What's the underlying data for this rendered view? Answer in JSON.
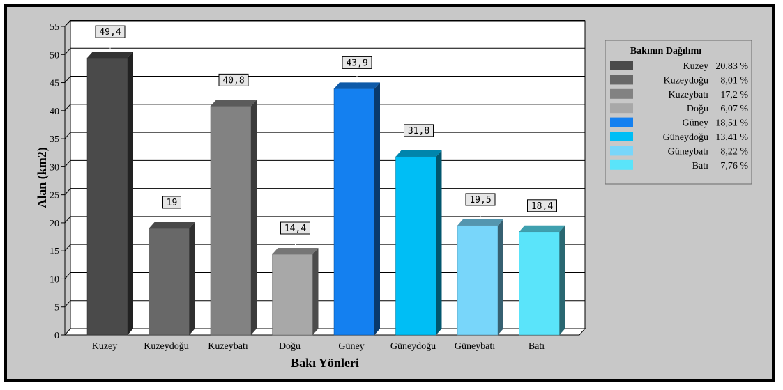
{
  "chart_data": {
    "type": "bar",
    "title": "",
    "xlabel": "Bakı Yönleri",
    "ylabel": "Alan (km2)",
    "ylim": [
      0,
      55
    ],
    "yticks": [
      0,
      5,
      10,
      15,
      20,
      25,
      30,
      35,
      40,
      45,
      50,
      55
    ],
    "grid": true,
    "categories": [
      "Kuzey",
      "Kuzeydoğu",
      "Kuzeybatı",
      "Doğu",
      "Güney",
      "Güneydoğu",
      "Güneybatı",
      "Batı"
    ],
    "values": [
      49.4,
      19,
      40.8,
      14.4,
      43.9,
      31.8,
      19.5,
      18.4
    ],
    "data_labels": [
      "49,4",
      "19",
      "40,8",
      "14,4",
      "43,9",
      "31,8",
      "19,5",
      "18,4"
    ],
    "colors": [
      "#4a4a4a",
      "#686868",
      "#828282",
      "#a8a8a8",
      "#1480f0",
      "#00bef5",
      "#78d6fa",
      "#5ae4fa"
    ],
    "legend": {
      "title": "Bakının Dağılımı",
      "placement": "right",
      "entries": [
        {
          "name": "Kuzey",
          "percent": "20,83 %"
        },
        {
          "name": "Kuzeydoğu",
          "percent": "8,01 %"
        },
        {
          "name": "Kuzeybatı",
          "percent": "17,2 %"
        },
        {
          "name": "Doğu",
          "percent": "6,07 %"
        },
        {
          "name": "Güney",
          "percent": "18,51 %"
        },
        {
          "name": "Güneydoğu",
          "percent": "13,41 %"
        },
        {
          "name": "Güneybatı",
          "percent": "8,22 %"
        },
        {
          "name": "Batı",
          "percent": "7,76 %"
        }
      ]
    }
  }
}
